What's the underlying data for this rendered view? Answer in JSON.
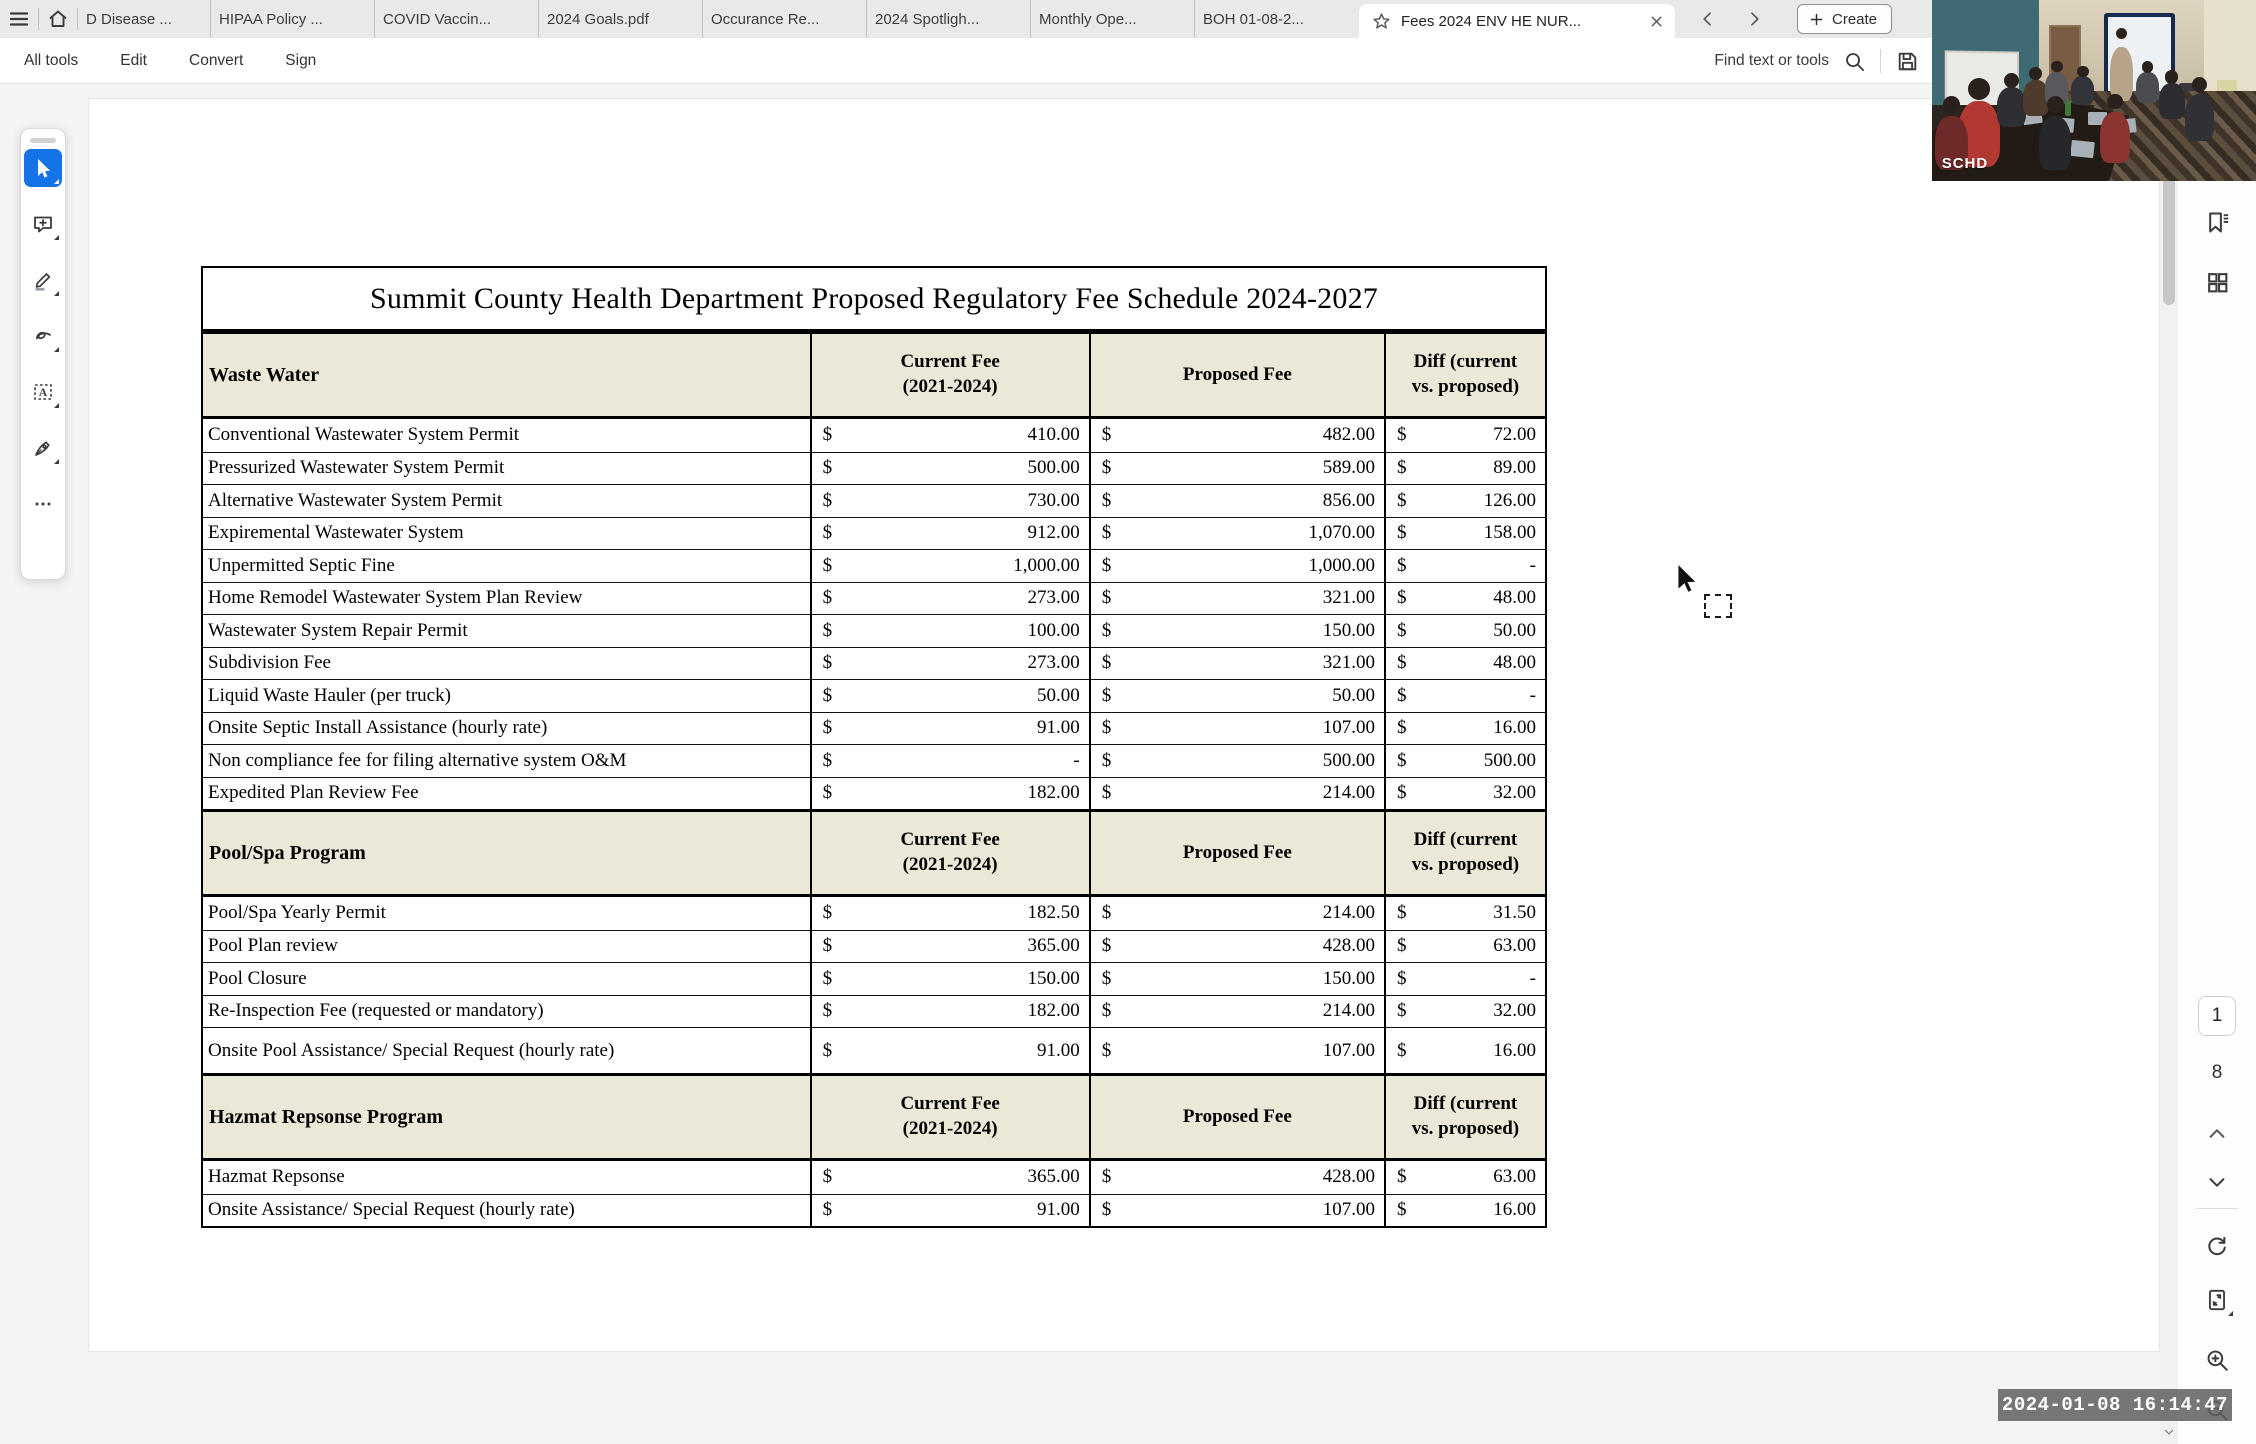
{
  "colors": {
    "accent_blue": "#1473e6",
    "table_header_cream": "#ece8d8",
    "tab_bar_bg": "#e9e9e9",
    "timestamp_bg": "rgba(95,95,95,0.85)"
  },
  "tab_bar": {
    "tabs": [
      "D Disease ...",
      "HIPAA Policy ...",
      "COVID Vaccin...",
      "2024 Goals.pdf",
      "Occurance Re...",
      "2024 Spotligh...",
      "Monthly Ope...",
      "BOH 01-08-2..."
    ],
    "active_tab": {
      "label": "Fees 2024 ENV HE NUR..."
    },
    "create_button": "Create"
  },
  "menu_bar": {
    "items": [
      "All tools",
      "Edit",
      "Convert",
      "Sign"
    ],
    "find_label": "Find text or tools"
  },
  "pdf": {
    "title": "Summit County Health Department Proposed Regulatory Fee Schedule 2024-2027",
    "fee_columns": [
      "Current Fee\n(2021-2024)",
      "Proposed Fee",
      "Diff (current\nvs. proposed)"
    ],
    "sections": [
      {
        "name": "Waste Water",
        "rows": [
          [
            "Conventional Wastewater System Permit",
            "410.00",
            "482.00",
            "72.00"
          ],
          [
            "Pressurized Wastewater System Permit",
            "500.00",
            "589.00",
            "89.00"
          ],
          [
            "Alternative Wastewater System Permit",
            "730.00",
            "856.00",
            "126.00"
          ],
          [
            "Expiremental Wastewater System",
            "912.00",
            "1,070.00",
            "158.00"
          ],
          [
            "Unpermitted Septic Fine",
            "1,000.00",
            "1,000.00",
            "-"
          ],
          [
            "Home Remodel Wastewater System Plan Review",
            "273.00",
            "321.00",
            "48.00"
          ],
          [
            "Wastewater System Repair Permit",
            "100.00",
            "150.00",
            "50.00"
          ],
          [
            "Subdivision Fee",
            "273.00",
            "321.00",
            "48.00"
          ],
          [
            "Liquid Waste Hauler (per truck)",
            "50.00",
            "50.00",
            "-"
          ],
          [
            "Onsite Septic Install Assistance (hourly rate)",
            "91.00",
            "107.00",
            "16.00"
          ],
          [
            "Non compliance fee for filing alternative system O&M",
            "-",
            "500.00",
            "500.00"
          ],
          [
            "Expedited Plan Review Fee",
            "182.00",
            "214.00",
            "32.00"
          ]
        ]
      },
      {
        "name": "Pool/Spa Program",
        "rows": [
          [
            "Pool/Spa Yearly Permit",
            "182.50",
            "214.00",
            "31.50"
          ],
          [
            "Pool Plan review",
            "365.00",
            "428.00",
            "63.00"
          ],
          [
            "Pool Closure",
            "150.00",
            "150.00",
            "-"
          ],
          [
            "Re-Inspection Fee (requested or mandatory)",
            "182.00",
            "214.00",
            "32.00"
          ],
          [
            "Onsite Pool Assistance/ Special Request (hourly rate)",
            "91.00",
            "107.00",
            "16.00"
          ]
        ]
      },
      {
        "name": "Hazmat Repsonse Program",
        "rows": [
          [
            "Hazmat Repsonse",
            "365.00",
            "428.00",
            "63.00"
          ],
          [
            "Onsite Assistance/ Special Request (hourly rate)",
            "91.00",
            "107.00",
            "16.00"
          ]
        ]
      }
    ]
  },
  "right_rail": {
    "current_page": "1",
    "total_pages": "8"
  },
  "video_overlay": {
    "watermark": "SCHD"
  },
  "timestamp": "2024-01-08 16:14:47"
}
